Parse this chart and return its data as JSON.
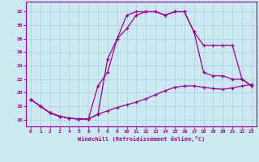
{
  "xlabel": "Windchill (Refroidissement éolien,°C)",
  "line_color": "#990099",
  "background_color": "#cce8f0",
  "grid_color": "#aaccdd",
  "xlim": [
    -0.5,
    23.5
  ],
  "ylim": [
    15.0,
    33.5
  ],
  "xticks": [
    0,
    1,
    2,
    3,
    4,
    5,
    6,
    7,
    8,
    9,
    10,
    11,
    12,
    13,
    14,
    15,
    16,
    17,
    18,
    19,
    20,
    21,
    22,
    23
  ],
  "yticks": [
    16,
    18,
    20,
    22,
    24,
    26,
    28,
    30,
    32
  ],
  "line1_x": [
    0,
    1,
    2,
    3,
    4,
    5,
    6,
    7,
    8,
    9,
    10,
    11,
    12,
    13,
    14,
    15,
    16,
    17,
    18,
    19,
    20,
    21,
    22,
    23
  ],
  "line1_y": [
    19,
    18,
    17,
    16.5,
    16.2,
    16.1,
    16.1,
    16.8,
    17.3,
    17.8,
    18.2,
    18.6,
    19.1,
    19.7,
    20.3,
    20.8,
    21.0,
    21.0,
    20.8,
    20.6,
    20.5,
    20.7,
    21.0,
    21.2
  ],
  "line2_x": [
    0,
    1,
    2,
    3,
    4,
    5,
    6,
    7,
    8,
    9,
    10,
    11,
    12,
    13,
    14,
    15,
    16,
    17,
    18,
    19,
    20,
    21,
    22,
    23
  ],
  "line2_y": [
    19,
    18,
    17,
    16.5,
    16.2,
    16.1,
    16.1,
    21,
    23,
    28,
    29.5,
    31.5,
    32,
    32,
    31.5,
    32,
    32,
    29,
    27,
    27,
    27,
    27,
    22,
    21
  ],
  "line3_x": [
    0,
    1,
    2,
    3,
    4,
    5,
    6,
    7,
    8,
    9,
    10,
    11,
    12,
    13,
    14,
    15,
    16,
    17,
    18,
    19,
    20,
    21,
    22,
    23
  ],
  "line3_y": [
    19,
    18,
    17,
    16.5,
    16.2,
    16.1,
    16.1,
    16.8,
    25,
    28,
    31.5,
    32,
    32,
    32,
    31.5,
    32,
    32,
    29,
    23,
    22.5,
    22.5,
    22,
    22,
    21
  ]
}
